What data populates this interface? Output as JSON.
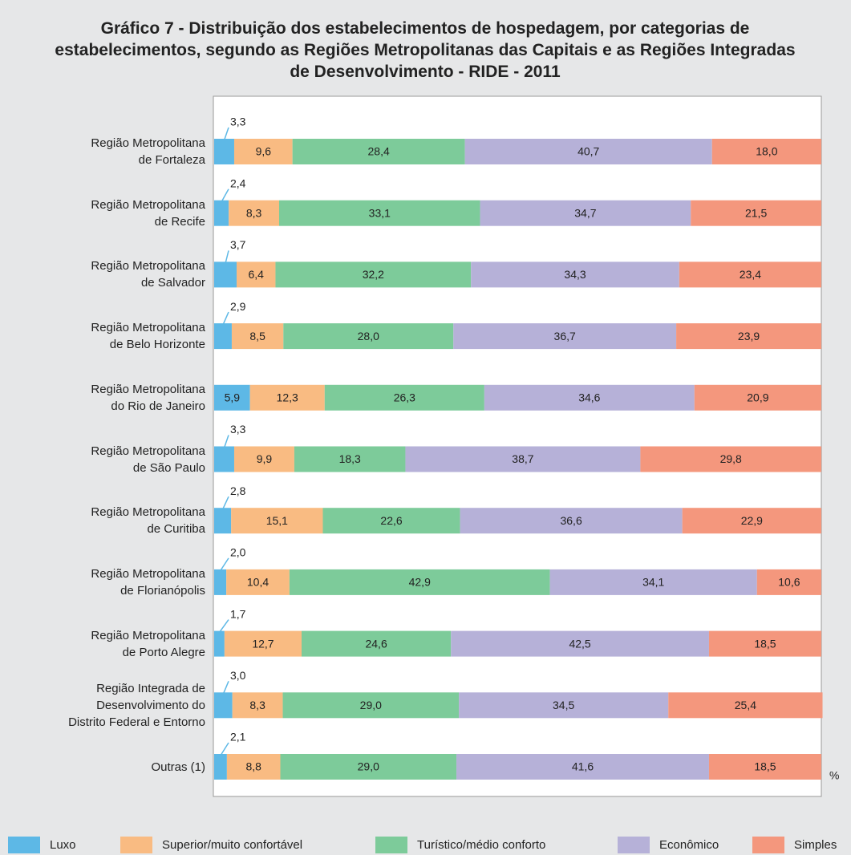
{
  "chart_data": {
    "type": "stacked_barh",
    "title": "Gráfico 7 - Distribuição dos estabelecimentos de hospedagem, por categorias de estabelecimentos, segundo as Regiões Metropolitanas das Capitais e as Regiões Integradas de Desenvolvimento - RIDE - 2011",
    "unit": "%",
    "categories": [
      "Região Metropolitana\nde Fortaleza",
      "Região Metropolitana\nde Recife",
      "Região Metropolitana\nde Salvador",
      "Região Metropolitana\nde Belo Horizonte",
      "Região Metropolitana\ndo Rio de Janeiro",
      "Região Metropolitana\nde São Paulo",
      "Região Metropolitana\nde Curitiba",
      "Região Metropolitana\nde Florianópolis",
      "Região Metropolitana\nde Porto Alegre",
      "Região Integrada de\nDesenvolvimento do\nDistrito Federal e Entorno",
      "Outras (1)"
    ],
    "xlim": [
      0,
      100
    ],
    "series": [
      {
        "name": "Luxo",
        "color": "#5db8e6",
        "values": [
          3.3,
          2.4,
          3.7,
          2.9,
          5.9,
          3.3,
          2.8,
          2.0,
          1.7,
          3.0,
          2.1
        ],
        "value_labels": [
          "3,3",
          "2,4",
          "3,7",
          "2,9",
          "5,9",
          "3,3",
          "2,8",
          "2,0",
          "1,7",
          "3,0",
          "2,1"
        ]
      },
      {
        "name": "Superior/muito confortável",
        "color": "#f9bb82",
        "values": [
          9.6,
          8.3,
          6.4,
          8.5,
          12.3,
          9.9,
          15.1,
          10.4,
          12.7,
          8.3,
          8.8
        ],
        "value_labels": [
          "9,6",
          "8,3",
          "6,4",
          "8,5",
          "12,3",
          "9,9",
          "15,1",
          "10,4",
          "12,7",
          "8,3",
          "8,8"
        ]
      },
      {
        "name": "Turístico/médio conforto",
        "color": "#7dcb9a",
        "values": [
          28.4,
          33.1,
          32.2,
          28.0,
          26.3,
          18.3,
          22.6,
          42.9,
          24.6,
          29.0,
          29.0
        ],
        "value_labels": [
          "28,4",
          "33,1",
          "32,2",
          "28,0",
          "26,3",
          "18,3",
          "22,6",
          "42,9",
          "24,6",
          "29,0",
          "29,0"
        ]
      },
      {
        "name": "Econômico",
        "color": "#b6b1d8",
        "values": [
          40.7,
          34.7,
          34.3,
          36.7,
          34.6,
          38.7,
          36.6,
          34.1,
          42.5,
          34.5,
          41.6
        ],
        "value_labels": [
          "40,7",
          "34,7",
          "34,3",
          "36,7",
          "34,6",
          "38,7",
          "36,6",
          "34,1",
          "42,5",
          "34,5",
          "41,6"
        ]
      },
      {
        "name": "Simples",
        "color": "#f4977d",
        "values": [
          18.0,
          21.5,
          23.4,
          23.9,
          20.9,
          29.8,
          22.9,
          10.6,
          18.5,
          25.4,
          18.5
        ],
        "value_labels": [
          "18,0",
          "21,5",
          "23,4",
          "23,9",
          "20,9",
          "29,8",
          "22,9",
          "10,6",
          "18,5",
          "25,4",
          "18,5"
        ]
      }
    ]
  }
}
